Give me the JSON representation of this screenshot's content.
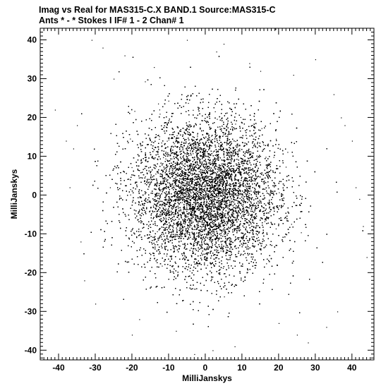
{
  "chart_data": {
    "type": "scatter",
    "title_lines": [
      "Imag vs Real for MAS315-C.X BAND.1   Source:MAS315-C",
      "Ants * - *     Stokes I  IF# 1 - 2   Chan# 1"
    ],
    "xlabel": "MilliJanskys",
    "ylabel": "MilliJanskys",
    "xlim": [
      -45,
      46
    ],
    "ylim": [
      -42.5,
      43
    ],
    "xticks": [
      -40,
      -30,
      -20,
      -10,
      0,
      10,
      20,
      30,
      40
    ],
    "yticks": [
      -40,
      -30,
      -20,
      -10,
      0,
      10,
      20,
      30,
      40
    ],
    "grid": false,
    "series": [
      {
        "distribution": "approximately gaussian point cloud centred at (0, 0)",
        "center": [
          0,
          0
        ],
        "std_x": 10,
        "std_y": 10,
        "approx_points": 30000,
        "marker_color": "#000000",
        "x": [
          -41,
          -38,
          -36,
          -37,
          -34,
          -35,
          -31,
          -28,
          -26,
          -30,
          -22,
          -18,
          35,
          38,
          40,
          41,
          42,
          43,
          44,
          36,
          33,
          28,
          30,
          25,
          -5,
          3,
          8,
          -3,
          12,
          -14,
          2,
          -25,
          24,
          -20,
          20,
          37,
          -33,
          5,
          -8,
          15
        ],
        "y": [
          22,
          14,
          12,
          2,
          -12,
          18,
          40,
          38,
          2,
          -28,
          36,
          -32,
          26,
          18,
          14,
          2,
          -1,
          -8,
          -16,
          -30,
          -34,
          -38,
          35,
          -36,
          40,
          37,
          -39,
          -41,
          34,
          33,
          -40,
          30,
          31,
          -36,
          -33,
          20,
          -22,
          39,
          -35,
          32
        ]
      }
    ]
  }
}
